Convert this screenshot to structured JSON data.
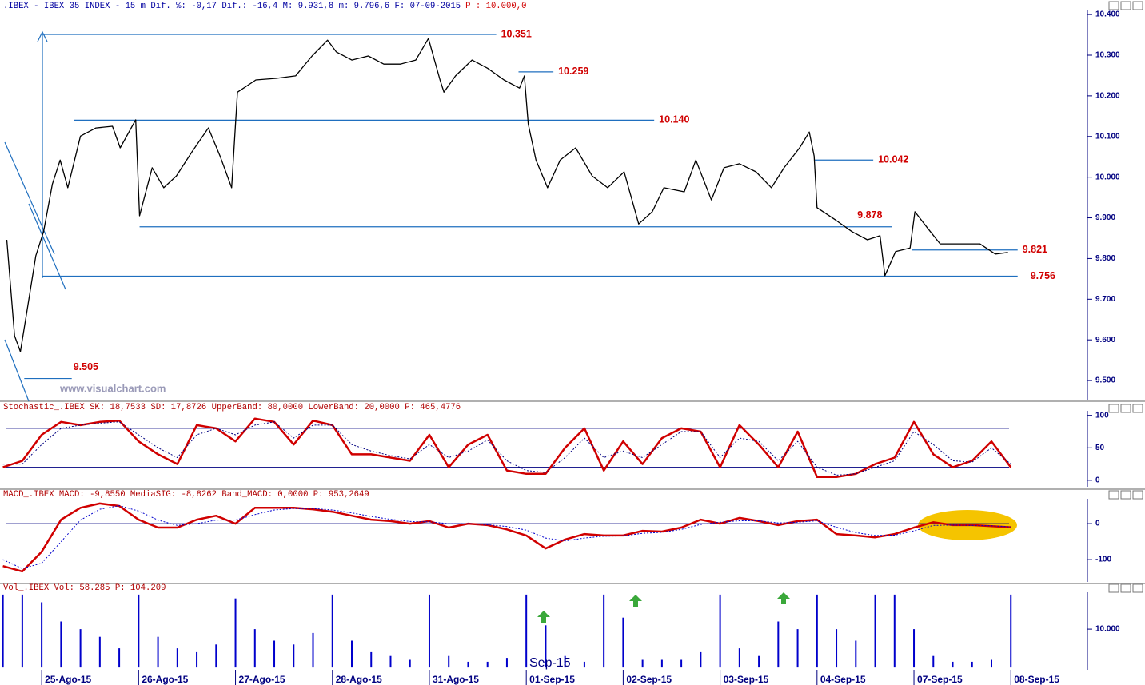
{
  "header": {
    "title": ".IBEX - IBEX 35 INDEX -  15 m Dif. %: -0,17 Dif.: -16,4 M: 9.931,8 m: 9.796,6 F: 07-09-2015",
    "price": "P : 10.000,0"
  },
  "watermark": "www.visualchart.com",
  "chart_data": [
    {
      "type": "line",
      "xlim": [
        -0.43,
        10.79
      ],
      "ylim": [
        9.453,
        10.412
      ],
      "yticks": [
        {
          "value": 10.4,
          "label": "10.400"
        },
        {
          "value": 10.3,
          "label": "10.300"
        },
        {
          "value": 10.2,
          "label": "10.200"
        },
        {
          "value": 10.1,
          "label": "10.100"
        },
        {
          "value": 10.0,
          "label": "10.000"
        },
        {
          "value": 9.9,
          "label": "9.900"
        },
        {
          "value": 9.8,
          "label": "9.800"
        },
        {
          "value": 9.7,
          "label": "9.700"
        },
        {
          "value": 9.6,
          "label": "9.600"
        },
        {
          "value": 9.5,
          "label": "9.500"
        }
      ],
      "x": [
        -0.36,
        -0.28,
        -0.22,
        -0.14,
        -0.06,
        0.02,
        0.11,
        0.19,
        0.27,
        0.4,
        0.56,
        0.73,
        0.81,
        0.97,
        1.01,
        1.14,
        1.26,
        1.39,
        1.55,
        1.72,
        1.84,
        1.96,
        2.02,
        2.21,
        2.42,
        2.62,
        2.79,
        2.95,
        3.04,
        3.2,
        3.37,
        3.53,
        3.7,
        3.86,
        3.99,
        4.11,
        4.15,
        4.27,
        4.44,
        4.6,
        4.77,
        4.93,
        4.98,
        5.02,
        5.1,
        5.22,
        5.35,
        5.51,
        5.68,
        5.84,
        6.01,
        6.16,
        6.3,
        6.42,
        6.63,
        6.75,
        6.91,
        7.04,
        7.2,
        7.37,
        7.53,
        7.66,
        7.82,
        7.92,
        7.97,
        8.0,
        8.19,
        8.36,
        8.52,
        8.65,
        8.7,
        8.81,
        8.96,
        9.01,
        9.14,
        9.27,
        9.47,
        9.68,
        9.84,
        9.97
      ],
      "series": [
        {
          "color": "#000000",
          "values": [
            9.846,
            9.61,
            9.571,
            9.689,
            9.807,
            9.866,
            9.983,
            10.042,
            9.974,
            10.101,
            10.121,
            10.125,
            10.072,
            10.141,
            9.905,
            10.023,
            9.974,
            10.003,
            10.062,
            10.121,
            10.052,
            9.974,
            10.209,
            10.239,
            10.243,
            10.249,
            10.298,
            10.337,
            10.308,
            10.288,
            10.298,
            10.278,
            10.278,
            10.288,
            10.341,
            10.239,
            10.209,
            10.249,
            10.288,
            10.268,
            10.239,
            10.219,
            10.249,
            10.131,
            10.042,
            9.974,
            10.042,
            10.072,
            10.003,
            9.974,
            10.013,
            9.885,
            9.915,
            9.974,
            9.964,
            10.042,
            9.944,
            10.023,
            10.033,
            10.013,
            9.974,
            10.023,
            10.072,
            10.111,
            10.052,
            9.925,
            9.895,
            9.866,
            9.846,
            9.856,
            9.758,
            9.817,
            9.826,
            9.915,
            9.875,
            9.836,
            9.836,
            9.836,
            9.811,
            9.815
          ]
        }
      ],
      "levels": [
        {
          "value": 10.351,
          "label": "10.351",
          "x": [
            0.0,
            4.69
          ]
        },
        {
          "value": 10.259,
          "label": "10.259",
          "x": [
            4.92,
            5.28
          ]
        },
        {
          "value": 10.14,
          "label": "10.140",
          "x": [
            0.33,
            6.32
          ]
        },
        {
          "value": 10.042,
          "label": "10.042",
          "x": [
            7.97,
            8.58
          ]
        },
        {
          "value": 9.878,
          "label": "9.878",
          "x": [
            1.01,
            8.77
          ]
        },
        {
          "value": 9.821,
          "label": "9.821",
          "x": [
            8.98,
            10.07
          ]
        },
        {
          "value": 9.756,
          "label": "9.756",
          "x": [
            0.0,
            10.07
          ]
        },
        {
          "value": 9.505,
          "label": "9.505",
          "x": [
            -0.18,
            0.31
          ]
        }
      ]
    },
    {
      "type": "line",
      "title": "Stochastic_.IBEX SK: 18,7533 SD: 17,8726 UpperBand: 80,0000 LowerBand: 20,0000 P: 465,4776",
      "xlim": [
        -0.43,
        10.79
      ],
      "ylim": [
        -10,
        107
      ],
      "yticks": [
        100,
        50,
        0
      ],
      "bands": [
        80,
        20
      ],
      "x": [
        -0.4,
        -0.2,
        0,
        0.2,
        0.4,
        0.6,
        0.8,
        1,
        1.2,
        1.4,
        1.6,
        1.8,
        2,
        2.2,
        2.4,
        2.6,
        2.8,
        3,
        3.2,
        3.4,
        3.6,
        3.8,
        4,
        4.2,
        4.4,
        4.6,
        4.8,
        5,
        5.2,
        5.4,
        5.6,
        5.8,
        6,
        6.2,
        6.4,
        6.6,
        6.8,
        7,
        7.2,
        7.4,
        7.6,
        7.8,
        8,
        8.2,
        8.4,
        8.6,
        8.8,
        9,
        9.2,
        9.4,
        9.6,
        9.8,
        10
      ],
      "series": [
        {
          "color": "#d00000",
          "values": [
            20,
            30,
            70,
            90,
            85,
            90,
            92,
            60,
            40,
            25,
            85,
            80,
            60,
            95,
            90,
            55,
            92,
            85,
            40,
            40,
            35,
            30,
            70,
            20,
            55,
            70,
            15,
            10,
            10,
            50,
            80,
            15,
            60,
            25,
            65,
            80,
            75,
            20,
            85,
            55,
            20,
            75,
            5,
            5,
            10,
            25,
            35,
            90,
            40,
            20,
            30,
            60,
            20
          ]
        },
        {
          "color": "#000080",
          "values": [
            25,
            25,
            55,
            80,
            85,
            88,
            90,
            70,
            50,
            35,
            70,
            80,
            70,
            85,
            90,
            65,
            85,
            85,
            55,
            45,
            38,
            33,
            55,
            35,
            45,
            62,
            30,
            15,
            12,
            35,
            65,
            35,
            45,
            35,
            55,
            75,
            75,
            35,
            65,
            60,
            30,
            60,
            20,
            8,
            10,
            20,
            30,
            75,
            55,
            30,
            28,
            50,
            25
          ]
        }
      ]
    },
    {
      "type": "line",
      "title": "MACD_.IBEX MACD: -9,8550 MediaSIG: -8,8262 Band_MACD: 0,0000 P: 953,2649",
      "xlim": [
        -0.43,
        10.79
      ],
      "ylim": [
        -162,
        69
      ],
      "yticks": [
        0,
        -100
      ],
      "bands": [
        0
      ],
      "x": [
        -0.4,
        -0.2,
        0,
        0.2,
        0.4,
        0.6,
        0.8,
        1,
        1.2,
        1.4,
        1.6,
        1.8,
        2,
        2.2,
        2.4,
        2.6,
        2.8,
        3,
        3.2,
        3.4,
        3.6,
        3.8,
        4,
        4.2,
        4.4,
        4.6,
        4.8,
        5,
        5.2,
        5.4,
        5.6,
        5.8,
        6,
        6.2,
        6.4,
        6.6,
        6.8,
        7,
        7.2,
        7.4,
        7.6,
        7.8,
        8,
        8.2,
        8.4,
        8.6,
        8.8,
        9,
        9.2,
        9.4,
        9.6,
        9.8,
        10
      ],
      "series": [
        {
          "color": "#d00000",
          "values": [
            -118,
            -133,
            -78,
            11,
            44,
            56,
            49,
            11,
            -11,
            -11,
            11,
            22,
            0,
            44,
            44,
            44,
            40,
            33,
            22,
            11,
            7,
            0,
            7,
            -11,
            0,
            -4,
            -16,
            -33,
            -69,
            -44,
            -29,
            -33,
            -33,
            -20,
            -22,
            -11,
            11,
            0,
            16,
            7,
            -4,
            7,
            11,
            -29,
            -33,
            -38,
            -29,
            -11,
            4,
            -4,
            -4,
            -7,
            -10
          ]
        },
        {
          "color": "#0000cc",
          "values": [
            -100,
            -125,
            -110,
            -50,
            10,
            40,
            50,
            35,
            10,
            -5,
            0,
            10,
            10,
            25,
            38,
            42,
            42,
            38,
            30,
            20,
            12,
            6,
            5,
            0,
            0,
            -3,
            -8,
            -18,
            -40,
            -48,
            -40,
            -35,
            -34,
            -27,
            -24,
            -16,
            -2,
            4,
            8,
            8,
            2,
            4,
            8,
            -10,
            -25,
            -33,
            -32,
            -20,
            -5,
            -4,
            -5,
            -6,
            -9
          ]
        }
      ]
    },
    {
      "type": "bar",
      "title": "Vol_.IBEX Vol: 58.285 P: 104.209",
      "annotation": "Sep-15",
      "xlim": [
        -0.43,
        10.79
      ],
      "ylim": [
        -600,
        19600
      ],
      "yticks": [
        {
          "value": 10000,
          "label": "10.000"
        }
      ],
      "xticks": [
        {
          "value": 0,
          "label": "25-Ago-15"
        },
        {
          "value": 1,
          "label": "26-Ago-15"
        },
        {
          "value": 2,
          "label": "27-Ago-15"
        },
        {
          "value": 3,
          "label": "28-Ago-15"
        },
        {
          "value": 4,
          "label": "31-Ago-15"
        },
        {
          "value": 5,
          "label": "01-Sep-15"
        },
        {
          "value": 6,
          "label": "02-Sep-15"
        },
        {
          "value": 7,
          "label": "03-Sep-15"
        },
        {
          "value": 8,
          "label": "04-Sep-15"
        },
        {
          "value": 9,
          "label": "07-Sep-15"
        },
        {
          "value": 10,
          "label": "08-Sep-15"
        }
      ],
      "x": [
        -0.4,
        -0.2,
        0,
        0.2,
        0.4,
        0.6,
        0.8,
        1,
        1.2,
        1.4,
        1.6,
        1.8,
        2,
        2.2,
        2.4,
        2.6,
        2.8,
        3,
        3.2,
        3.4,
        3.6,
        3.8,
        4,
        4.2,
        4.4,
        4.6,
        4.8,
        5,
        5.2,
        5.4,
        5.6,
        5.8,
        6,
        6.2,
        6.4,
        6.6,
        6.8,
        7,
        7.2,
        7.4,
        7.6,
        7.8,
        8,
        8.2,
        8.4,
        8.6,
        8.8,
        9,
        9.2,
        9.4,
        9.6,
        9.8,
        10
      ],
      "series": [
        {
          "color": "#0000cc",
          "values": [
            19000,
            19000,
            17000,
            12000,
            10000,
            8000,
            5000,
            19000,
            8000,
            5000,
            4000,
            6000,
            18000,
            10000,
            7000,
            6000,
            9000,
            19000,
            7000,
            4000,
            3000,
            2000,
            19000,
            3000,
            1500,
            1500,
            2500,
            19000,
            11000,
            3000,
            1500,
            19000,
            13000,
            2000,
            2000,
            2000,
            4000,
            19000,
            5000,
            3000,
            12000,
            10000,
            19000,
            10000,
            7000,
            19000,
            19000,
            10000,
            3000,
            1500,
            1500,
            2000,
            19000
          ]
        }
      ]
    }
  ]
}
